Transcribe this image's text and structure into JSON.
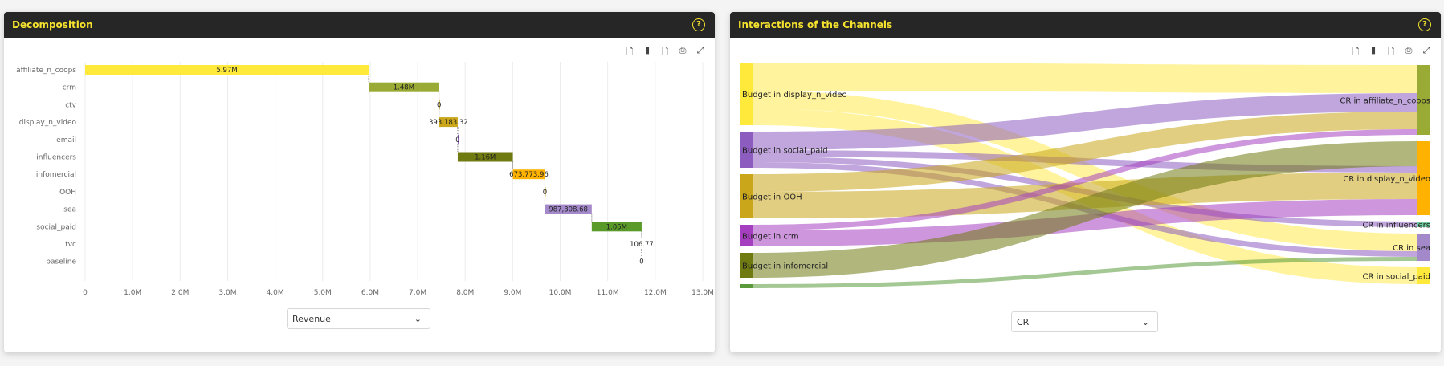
{
  "decomposition": {
    "title": "Decomposition",
    "toolbar": [
      "png-file-icon",
      "pdf-file-icon",
      "xlsx-file-icon",
      "print-icon",
      "fullscreen-icon"
    ],
    "dropdown": {
      "selected": "Revenue"
    }
  },
  "interactions": {
    "title": "Interactions of the Channels",
    "toolbar": [
      "png-file-icon",
      "pdf-file-icon",
      "xlsx-file-icon",
      "print-icon",
      "fullscreen-icon"
    ],
    "dropdown": {
      "selected": "CR"
    }
  },
  "chart_data": [
    {
      "type": "bar",
      "subtype": "waterfall-horizontal",
      "categories": [
        "affiliate_n_coops",
        "crm",
        "ctv",
        "display_n_video",
        "email",
        "influencers",
        "infomercial",
        "OOH",
        "sea",
        "social_paid",
        "tvc",
        "baseline"
      ],
      "values": [
        5970000,
        1480000,
        0,
        393183.32,
        0,
        1160000,
        673773.96,
        0,
        987308.68,
        1050000,
        106.77,
        0
      ],
      "data_labels": [
        "5.97M",
        "1.48M",
        "0",
        "393,183.32",
        "0",
        "1.16M",
        "673,773.96",
        "0",
        "987,308.68",
        "1.05M",
        "106.77",
        "0"
      ],
      "colors": [
        "#ffe93b",
        "#9aab35",
        "#c9a61a",
        "#c9a61a",
        "#8d5cbf",
        "#6f7a10",
        "#ffb300",
        "#c9a61a",
        "#a389c9",
        "#5a9a2a",
        "#ffe93b",
        "#888888"
      ],
      "xlim": [
        0,
        13000000
      ],
      "xticks": [
        "0",
        "1.0M",
        "2.0M",
        "3.0M",
        "4.0M",
        "5.0M",
        "6.0M",
        "7.0M",
        "8.0M",
        "9.0M",
        "10.0M",
        "11.0M",
        "12.0M",
        "13.0M"
      ],
      "grid": true
    },
    {
      "type": "sankey",
      "sources": [
        {
          "id": "display",
          "label": "Budget in display_n_video",
          "color": "#ffe93b"
        },
        {
          "id": "social",
          "label": "Budget in social_paid",
          "color": "#8d5cbf"
        },
        {
          "id": "ooh",
          "label": "Budget in OOH",
          "color": "#c9a61a"
        },
        {
          "id": "crm",
          "label": "Budget in crm",
          "color": "#a63fbf"
        },
        {
          "id": "infomercial",
          "label": "Budget in infomercial",
          "color": "#6f7a10"
        },
        {
          "id": "other",
          "label": "",
          "color": "#5a9a3a"
        }
      ],
      "targets": [
        {
          "id": "t_aff",
          "label": "CR in affiliate_n_coops",
          "color": "#9aab35"
        },
        {
          "id": "t_disp",
          "label": "CR in display_n_video",
          "color": "#ffb300"
        },
        {
          "id": "t_inf",
          "label": "CR in influencers",
          "color": "#6fcf9f"
        },
        {
          "id": "t_sea",
          "label": "CR in sea",
          "color": "#a389c9"
        },
        {
          "id": "t_soc",
          "label": "CR in social_paid",
          "color": "#ffe93b"
        }
      ],
      "links": [
        {
          "source": "display",
          "target": "t_aff",
          "value": 35
        },
        {
          "source": "display",
          "target": "t_sea",
          "value": 22
        },
        {
          "source": "display",
          "target": "t_soc",
          "value": 21
        },
        {
          "source": "social",
          "target": "t_aff",
          "value": 23
        },
        {
          "source": "social",
          "target": "t_disp",
          "value": 8
        },
        {
          "source": "social",
          "target": "t_inf",
          "value": 7
        },
        {
          "source": "social",
          "target": "t_sea",
          "value": 7
        },
        {
          "source": "ooh",
          "target": "t_aff",
          "value": 22
        },
        {
          "source": "ooh",
          "target": "t_disp",
          "value": 33
        },
        {
          "source": "crm",
          "target": "t_aff",
          "value": 7
        },
        {
          "source": "crm",
          "target": "t_disp",
          "value": 20
        },
        {
          "source": "infomercial",
          "target": "t_disp",
          "value": 31
        },
        {
          "source": "other",
          "target": "t_sea",
          "value": 5
        }
      ]
    }
  ]
}
